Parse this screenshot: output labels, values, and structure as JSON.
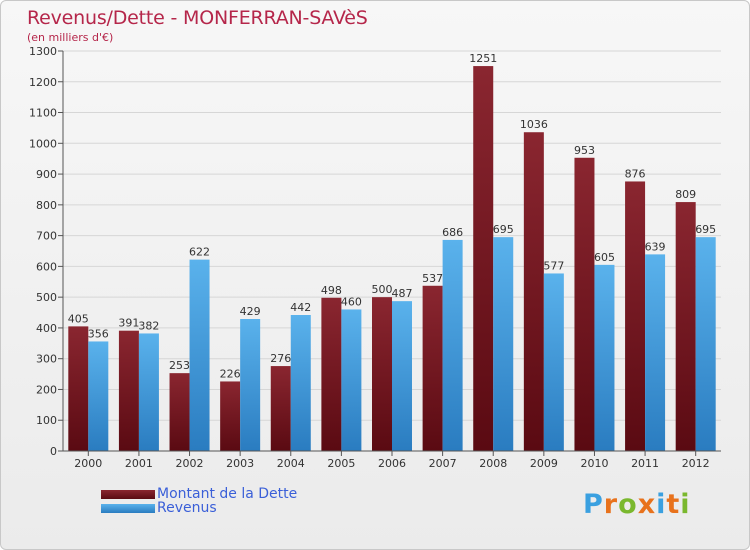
{
  "chart_data": {
    "type": "bar",
    "title": "Revenus/Dette - MONFERRAN-SAVèS",
    "subtitle": "(en milliers d'€)",
    "xlabel": "",
    "ylabel": "",
    "ylim": [
      0,
      1300
    ],
    "yticks": [
      0,
      100,
      200,
      300,
      400,
      500,
      600,
      700,
      800,
      900,
      1000,
      1100,
      1200,
      1300
    ],
    "categories": [
      "2000",
      "2001",
      "2002",
      "2003",
      "2004",
      "2005",
      "2006",
      "2007",
      "2008",
      "2009",
      "2010",
      "2011",
      "2012"
    ],
    "series": [
      {
        "name": "Montant de la Dette",
        "color": "#7a1a22",
        "values": [
          405,
          391,
          253,
          226,
          276,
          498,
          500,
          537,
          1251,
          1036,
          953,
          876,
          809
        ]
      },
      {
        "name": "Revenus",
        "color": "#3a96d8",
        "values": [
          356,
          382,
          622,
          429,
          442,
          460,
          487,
          686,
          695,
          577,
          605,
          639,
          695
        ]
      }
    ],
    "legend_position": "bottom-left",
    "grid": true
  },
  "logo": {
    "letters": [
      "P",
      "r",
      "o",
      "x",
      "i",
      "t",
      "i"
    ],
    "colors": [
      "#3aa0e0",
      "#e8721c",
      "#7ab82e",
      "#e8721c",
      "#3aa0e0",
      "#e8721c",
      "#7ab82e"
    ]
  }
}
